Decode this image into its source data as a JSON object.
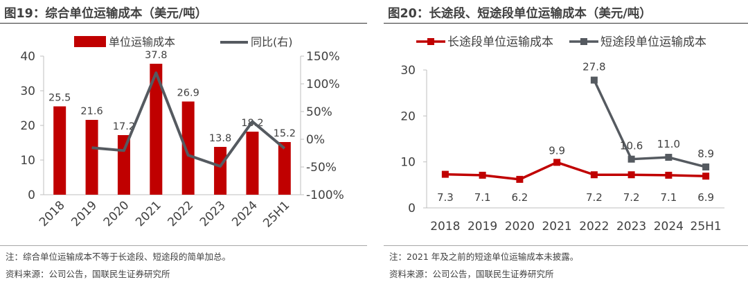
{
  "colors": {
    "bar": "#c00000",
    "line_gray": "#555a60",
    "line_red": "#c00000",
    "axis": "#bfbfbf"
  },
  "left": {
    "title": "图19：综合单位运输成本（美元/吨）",
    "note": "注：综合单位运输成本不等于长途段、短途段的简单加总。",
    "source": "资料来源：公司公告，国联民生证券研究所"
  },
  "right": {
    "title": "图20：长途段、短途段单位运输成本（美元/吨）",
    "note": "注：2021 年及之前的短途单位运输成本未披露。",
    "source": "资料来源：公司公告，国联民生证券研究所"
  },
  "chart_data": [
    {
      "type": "bar",
      "categories": [
        "2018",
        "2019",
        "2020",
        "2021",
        "2022",
        "2023",
        "2024",
        "25H1"
      ],
      "series": [
        {
          "name": "单位运输成本",
          "type": "bar",
          "axis": "left",
          "values": [
            25.5,
            21.6,
            17.2,
            37.8,
            26.9,
            13.8,
            18.2,
            15.2
          ],
          "labels": [
            "25.5",
            "21.6",
            "17.2",
            "37.8",
            "26.9",
            "13.8",
            "18.2",
            "15.2"
          ]
        },
        {
          "name": "同比(右)",
          "type": "line",
          "axis": "right",
          "values": [
            null,
            -15.3,
            -20.4,
            119.8,
            -28.8,
            -48.7,
            31.9,
            -16.5
          ]
        }
      ],
      "ylim": [
        0,
        40
      ],
      "yticks": [
        "0",
        "10",
        "20",
        "30",
        "40"
      ],
      "y2lim": [
        -1.0,
        1.5
      ],
      "y2ticks": [
        "-100%",
        "-50%",
        "0%",
        "50%",
        "100%",
        "150%"
      ],
      "legend_position": "top",
      "grid": false
    },
    {
      "type": "line",
      "categories": [
        "2018",
        "2019",
        "2020",
        "2021",
        "2022",
        "2023",
        "2024",
        "25H1"
      ],
      "series": [
        {
          "name": "长途段单位运输成本",
          "values": [
            7.3,
            7.1,
            6.2,
            9.9,
            7.2,
            7.2,
            7.1,
            6.9
          ],
          "labels": [
            "7.3",
            "7.1",
            "6.2",
            "9.9",
            "7.2",
            "7.2",
            "7.1",
            "6.9"
          ]
        },
        {
          "name": "短途段单位运输成本",
          "values": [
            null,
            null,
            null,
            null,
            27.8,
            10.6,
            11.0,
            8.9
          ],
          "labels": [
            "",
            "",
            "",
            "",
            "27.8",
            "10.6",
            "11.0",
            "8.9"
          ]
        }
      ],
      "ylim": [
        0,
        30
      ],
      "yticks": [
        "0",
        "10",
        "20",
        "30"
      ],
      "legend_position": "top",
      "grid": false
    }
  ]
}
